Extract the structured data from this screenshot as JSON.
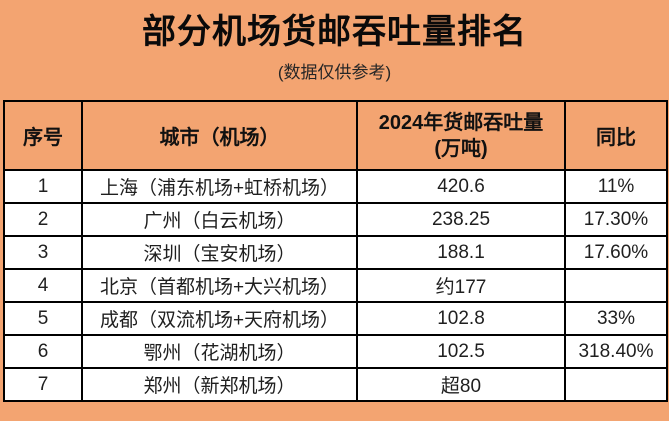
{
  "page": {
    "title": "部分机场货邮吞吐量排名",
    "subtitle": "(数据仅供参考)"
  },
  "colors": {
    "background": "#F3A471",
    "border": "#000000",
    "row_background": "#FFFFFF",
    "title_text": "#0A0A0A",
    "body_text": "#1F1F1F"
  },
  "table": {
    "headers": {
      "rank": "序号",
      "city": "城市（机场）",
      "throughput_line1": "2024年货邮吞吐量",
      "throughput_line2": "(万吨)",
      "yoy": "同比"
    },
    "rows": [
      {
        "rank": "1",
        "city": "上海（浦东机场+虹桥机场）",
        "throughput": "420.6",
        "yoy": "11%"
      },
      {
        "rank": "2",
        "city": "广州（白云机场）",
        "throughput": "238.25",
        "yoy": "17.30%"
      },
      {
        "rank": "3",
        "city": "深圳（宝安机场）",
        "throughput": "188.1",
        "yoy": "17.60%"
      },
      {
        "rank": "4",
        "city": "北京（首都机场+大兴机场）",
        "throughput": "约177",
        "yoy": ""
      },
      {
        "rank": "5",
        "city": "成都（双流机场+天府机场）",
        "throughput": "102.8",
        "yoy": "33%"
      },
      {
        "rank": "6",
        "city": "鄂州（花湖机场）",
        "throughput": "102.5",
        "yoy": "318.40%"
      },
      {
        "rank": "7",
        "city": "郑州（新郑机场）",
        "throughput": "超80",
        "yoy": ""
      }
    ]
  },
  "chart_data": {
    "type": "table",
    "title": "部分机场货邮吞吐量排名",
    "subtitle": "(数据仅供参考)",
    "columns": [
      "序号",
      "城市（机场）",
      "2024年货邮吞吐量(万吨)",
      "同比"
    ],
    "rows": [
      [
        "1",
        "上海（浦东机场+虹桥机场）",
        "420.6",
        "11%"
      ],
      [
        "2",
        "广州（白云机场）",
        "238.25",
        "17.30%"
      ],
      [
        "3",
        "深圳（宝安机场）",
        "188.1",
        "17.60%"
      ],
      [
        "4",
        "北京（首都机场+大兴机场）",
        "约177",
        ""
      ],
      [
        "5",
        "成都（双流机场+天府机场）",
        "102.8",
        "33%"
      ],
      [
        "6",
        "鄂州（花湖机场）",
        "102.5",
        "318.40%"
      ],
      [
        "7",
        "郑州（新郑机场）",
        "超80",
        ""
      ]
    ],
    "throughput_values_wan_tons": [
      420.6,
      238.25,
      188.1,
      177,
      102.8,
      102.5,
      80
    ],
    "yoy_percent": [
      11,
      17.3,
      17.6,
      null,
      33,
      318.4,
      null
    ]
  }
}
